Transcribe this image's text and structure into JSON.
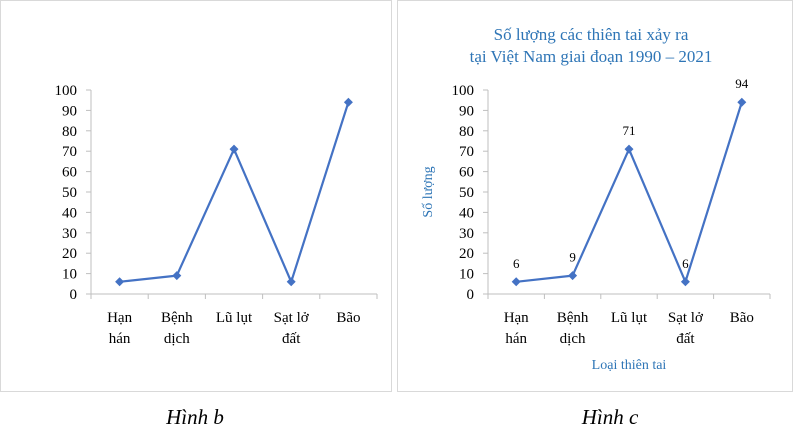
{
  "chart_data": [
    {
      "type": "line",
      "categories": [
        [
          "Hạn",
          "hán"
        ],
        [
          "Bệnh",
          "dịch"
        ],
        [
          "Lũ lụt"
        ],
        [
          "Sạt lở",
          "đất"
        ],
        [
          "Bão"
        ]
      ],
      "series": [
        {
          "values": [
            6,
            9,
            71,
            6,
            94
          ],
          "color": "#4472c4"
        }
      ],
      "ylim": [
        0,
        100
      ],
      "yticks": [
        0,
        10,
        20,
        30,
        40,
        50,
        60,
        70,
        80,
        90,
        100
      ],
      "title": "",
      "xlabel": "",
      "ylabel": "",
      "data_labels": false,
      "grid": false,
      "legend": "none"
    },
    {
      "type": "line",
      "categories": [
        [
          "Hạn",
          "hán"
        ],
        [
          "Bệnh",
          "dịch"
        ],
        [
          "Lũ lụt"
        ],
        [
          "Sạt lở",
          "đất"
        ],
        [
          "Bão"
        ]
      ],
      "series": [
        {
          "values": [
            6,
            9,
            71,
            6,
            94
          ],
          "color": "#4472c4"
        }
      ],
      "ylim": [
        0,
        100
      ],
      "yticks": [
        0,
        10,
        20,
        30,
        40,
        50,
        60,
        70,
        80,
        90,
        100
      ],
      "title": [
        "Số lượng các thiên tai xảy ra",
        "tại Việt Nam giai đoạn 1990 – 2021"
      ],
      "xlabel": "Loại thiên tai",
      "ylabel": "Số lượng",
      "data_labels": true,
      "grid": false,
      "legend": "none"
    }
  ],
  "captions": {
    "b": "Hình b",
    "c": "Hình c"
  }
}
